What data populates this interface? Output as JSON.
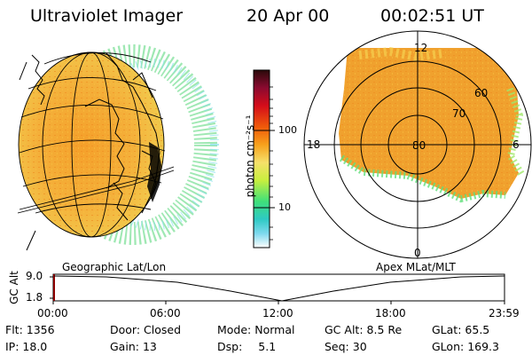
{
  "header": {
    "instrument": "Ultraviolet Imager",
    "date": "20 Apr 00",
    "time": "00:02:51 UT"
  },
  "colorbar": {
    "unit": "photon cm⁻²s⁻¹",
    "ticks": [
      "100",
      "10"
    ],
    "scale": "log",
    "colors": [
      "#2a0a0a",
      "#8b0a30",
      "#d40c1a",
      "#f05a0a",
      "#f7a11c",
      "#f5e06a",
      "#c9ef3e",
      "#3fe07a",
      "#2ec9c4",
      "#7dd9ee",
      "#ffffff"
    ]
  },
  "polar": {
    "latitude_labels": [
      "80",
      "70",
      "60"
    ],
    "mlt_labels": {
      "top": "12",
      "left": "18",
      "right": "6",
      "bottom": "0"
    }
  },
  "panels": {
    "left_caption": "Geographic Lat/Lon",
    "right_caption": "Apex MLat/MLT"
  },
  "altitude_plot": {
    "axis_label": "GC Alt",
    "y_ticks": [
      "9.0",
      "1.8"
    ],
    "x_ticks": [
      "00:00",
      "06:00",
      "12:00",
      "18:00",
      "23:59"
    ]
  },
  "info": [
    {
      "label": "Flt:",
      "value": "1356"
    },
    {
      "label": "Door:",
      "value": "Closed"
    },
    {
      "label": "Mode:",
      "value": "Normal"
    },
    {
      "label": "GC Alt:",
      "value": "8.5 Re"
    },
    {
      "label": "GLat:",
      "value": "65.5"
    },
    {
      "label": "IP:",
      "value": "18.0"
    },
    {
      "label": "Gain:",
      "value": "13"
    },
    {
      "label": "Dsp:",
      "value": "5.1"
    },
    {
      "label": "Seq:",
      "value": "30"
    },
    {
      "label": "GLon:",
      "value": "169.3"
    }
  ]
}
